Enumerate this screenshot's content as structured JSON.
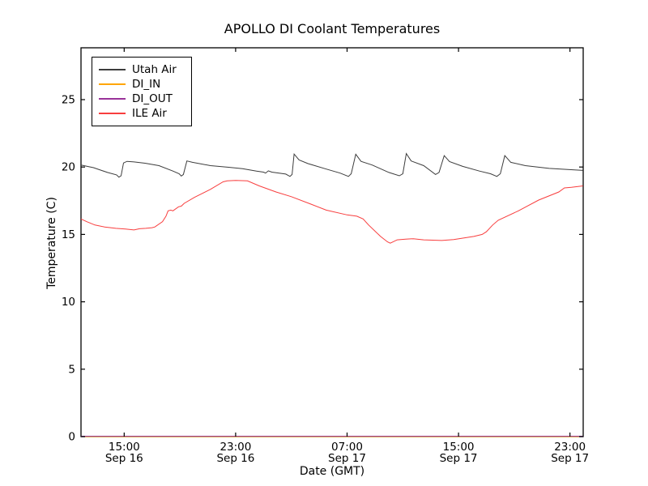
{
  "chart_data": {
    "type": "line",
    "title": "APOLLO DI Coolant Temperatures",
    "xlabel": "Date (GMT)",
    "ylabel": "Temperature (C)",
    "x_unit": "hours since Sep 16 00:00 GMT",
    "xlim": [
      11.9,
      47.95
    ],
    "ylim": [
      0,
      28.85
    ],
    "grid": false,
    "legend_position": "upper left",
    "xticks": [
      {
        "t": 15,
        "line1": "15:00",
        "line2": "Sep 16"
      },
      {
        "t": 23,
        "line1": "23:00",
        "line2": "Sep 16"
      },
      {
        "t": 31,
        "line1": "07:00",
        "line2": "Sep 17"
      },
      {
        "t": 39,
        "line1": "15:00",
        "line2": "Sep 17"
      },
      {
        "t": 47,
        "line1": "23:00",
        "line2": "Sep 17"
      }
    ],
    "yticks": [
      0,
      5,
      10,
      15,
      20,
      25
    ],
    "series": [
      {
        "name": "Utah Air",
        "color": "#3d3d3d",
        "points": [
          [
            11.9,
            20.15
          ],
          [
            12.8,
            19.95
          ],
          [
            13.8,
            19.6
          ],
          [
            14.45,
            19.42
          ],
          [
            14.62,
            19.25
          ],
          [
            14.78,
            19.35
          ],
          [
            14.95,
            20.3
          ],
          [
            15.2,
            20.42
          ],
          [
            15.7,
            20.38
          ],
          [
            16.5,
            20.28
          ],
          [
            17.5,
            20.1
          ],
          [
            18.5,
            19.7
          ],
          [
            18.95,
            19.5
          ],
          [
            19.1,
            19.33
          ],
          [
            19.25,
            19.45
          ],
          [
            19.5,
            20.45
          ],
          [
            19.9,
            20.35
          ],
          [
            21.2,
            20.1
          ],
          [
            22.5,
            19.98
          ],
          [
            23.5,
            19.88
          ],
          [
            24.5,
            19.7
          ],
          [
            25.0,
            19.62
          ],
          [
            25.15,
            19.55
          ],
          [
            25.35,
            19.72
          ],
          [
            25.6,
            19.62
          ],
          [
            26.6,
            19.48
          ],
          [
            26.9,
            19.3
          ],
          [
            27.05,
            19.45
          ],
          [
            27.2,
            20.96
          ],
          [
            27.55,
            20.52
          ],
          [
            28.2,
            20.25
          ],
          [
            29.5,
            19.85
          ],
          [
            30.5,
            19.55
          ],
          [
            31.1,
            19.3
          ],
          [
            31.3,
            19.5
          ],
          [
            31.62,
            20.95
          ],
          [
            32.0,
            20.42
          ],
          [
            32.8,
            20.15
          ],
          [
            34.0,
            19.6
          ],
          [
            34.75,
            19.35
          ],
          [
            35.0,
            19.5
          ],
          [
            35.25,
            21.0
          ],
          [
            35.6,
            20.45
          ],
          [
            36.5,
            20.1
          ],
          [
            37.35,
            19.45
          ],
          [
            37.6,
            19.6
          ],
          [
            37.97,
            20.85
          ],
          [
            38.35,
            20.4
          ],
          [
            39.3,
            20.05
          ],
          [
            40.5,
            19.7
          ],
          [
            41.3,
            19.5
          ],
          [
            41.75,
            19.3
          ],
          [
            42.0,
            19.5
          ],
          [
            42.32,
            20.85
          ],
          [
            42.75,
            20.35
          ],
          [
            43.8,
            20.1
          ],
          [
            45.5,
            19.9
          ],
          [
            47.93,
            19.75
          ]
        ]
      },
      {
        "name": "DI_IN",
        "color": "#ffa500",
        "points": [
          [
            11.9,
            0
          ],
          [
            47.93,
            0
          ]
        ]
      },
      {
        "name": "DI_OUT",
        "color": "#993399",
        "points": [
          [
            11.9,
            0.03
          ],
          [
            47.93,
            0.03
          ]
        ]
      },
      {
        "name": "ILE Air",
        "color": "#f83e3e",
        "points": [
          [
            11.9,
            16.15
          ],
          [
            12.3,
            15.95
          ],
          [
            12.9,
            15.7
          ],
          [
            13.6,
            15.55
          ],
          [
            14.4,
            15.45
          ],
          [
            15.1,
            15.4
          ],
          [
            15.7,
            15.33
          ],
          [
            16.1,
            15.42
          ],
          [
            16.55,
            15.45
          ],
          [
            17.0,
            15.5
          ],
          [
            17.2,
            15.55
          ],
          [
            17.75,
            15.95
          ],
          [
            18.0,
            16.35
          ],
          [
            18.15,
            16.75
          ],
          [
            18.35,
            16.8
          ],
          [
            18.5,
            16.75
          ],
          [
            18.9,
            17.05
          ],
          [
            19.1,
            17.1
          ],
          [
            19.3,
            17.3
          ],
          [
            20.05,
            17.75
          ],
          [
            21.2,
            18.35
          ],
          [
            22.1,
            18.9
          ],
          [
            22.4,
            18.97
          ],
          [
            23.0,
            19.0
          ],
          [
            23.85,
            18.97
          ],
          [
            24.7,
            18.6
          ],
          [
            25.9,
            18.15
          ],
          [
            27.0,
            17.8
          ],
          [
            28.4,
            17.25
          ],
          [
            29.5,
            16.8
          ],
          [
            31.0,
            16.45
          ],
          [
            31.7,
            16.35
          ],
          [
            32.15,
            16.15
          ],
          [
            32.55,
            15.7
          ],
          [
            33.4,
            14.85
          ],
          [
            33.9,
            14.45
          ],
          [
            34.1,
            14.35
          ],
          [
            34.6,
            14.6
          ],
          [
            35.2,
            14.65
          ],
          [
            35.75,
            14.68
          ],
          [
            36.5,
            14.6
          ],
          [
            37.8,
            14.55
          ],
          [
            38.65,
            14.62
          ],
          [
            40.1,
            14.85
          ],
          [
            40.7,
            15.0
          ],
          [
            41.0,
            15.2
          ],
          [
            41.45,
            15.7
          ],
          [
            41.85,
            16.05
          ],
          [
            43.3,
            16.75
          ],
          [
            44.75,
            17.55
          ],
          [
            46.2,
            18.15
          ],
          [
            46.6,
            18.45
          ],
          [
            47.1,
            18.5
          ],
          [
            47.93,
            18.6
          ]
        ]
      }
    ]
  }
}
